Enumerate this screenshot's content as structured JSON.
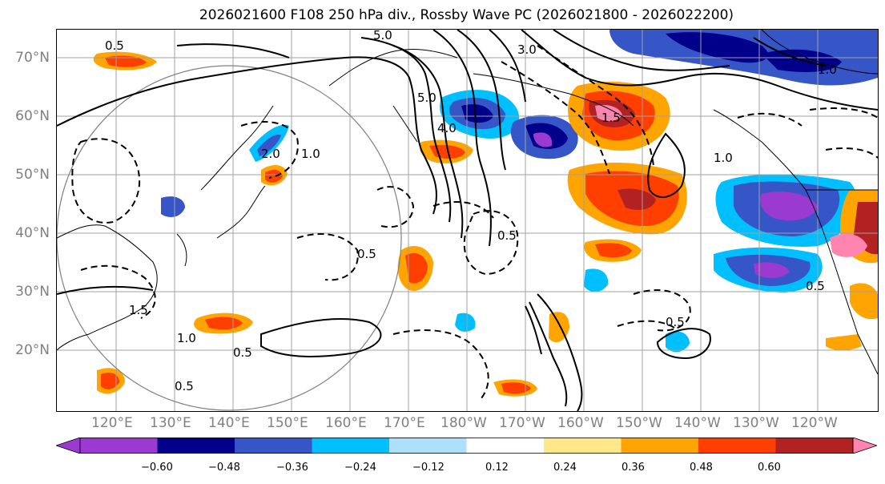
{
  "title": "2026021600 F108 250 hPa div., Rossby Wave PC (2026021800 - 2026022200)",
  "lat_labels": [
    "70°N",
    "60°N",
    "50°N",
    "40°N",
    "30°N",
    "20°N"
  ],
  "lon_labels": [
    "120°E",
    "130°E",
    "140°E",
    "150°E",
    "160°E",
    "170°E",
    "180°W",
    "170°W",
    "160°W",
    "150°W",
    "140°W",
    "130°W",
    "120°W"
  ],
  "colorbar": {
    "ticks": [
      "−0.60",
      "−0.48",
      "−0.36",
      "−0.24",
      "−0.12",
      "0.12",
      "0.24",
      "0.36",
      "0.48",
      "0.60"
    ],
    "colors": [
      "#9a3ad0",
      "#00008b",
      "#3656c8",
      "#00bfff",
      "#afe0fb",
      "#ffffff",
      "#ffe88a",
      "#ffa400",
      "#ff3f00",
      "#b22222",
      "#ff85b0",
      "#ff85b0"
    ]
  },
  "contour_labels": [
    "0.5",
    "1.0",
    "1.5",
    "2.0",
    "3.0",
    "4.0",
    "5.0"
  ]
}
